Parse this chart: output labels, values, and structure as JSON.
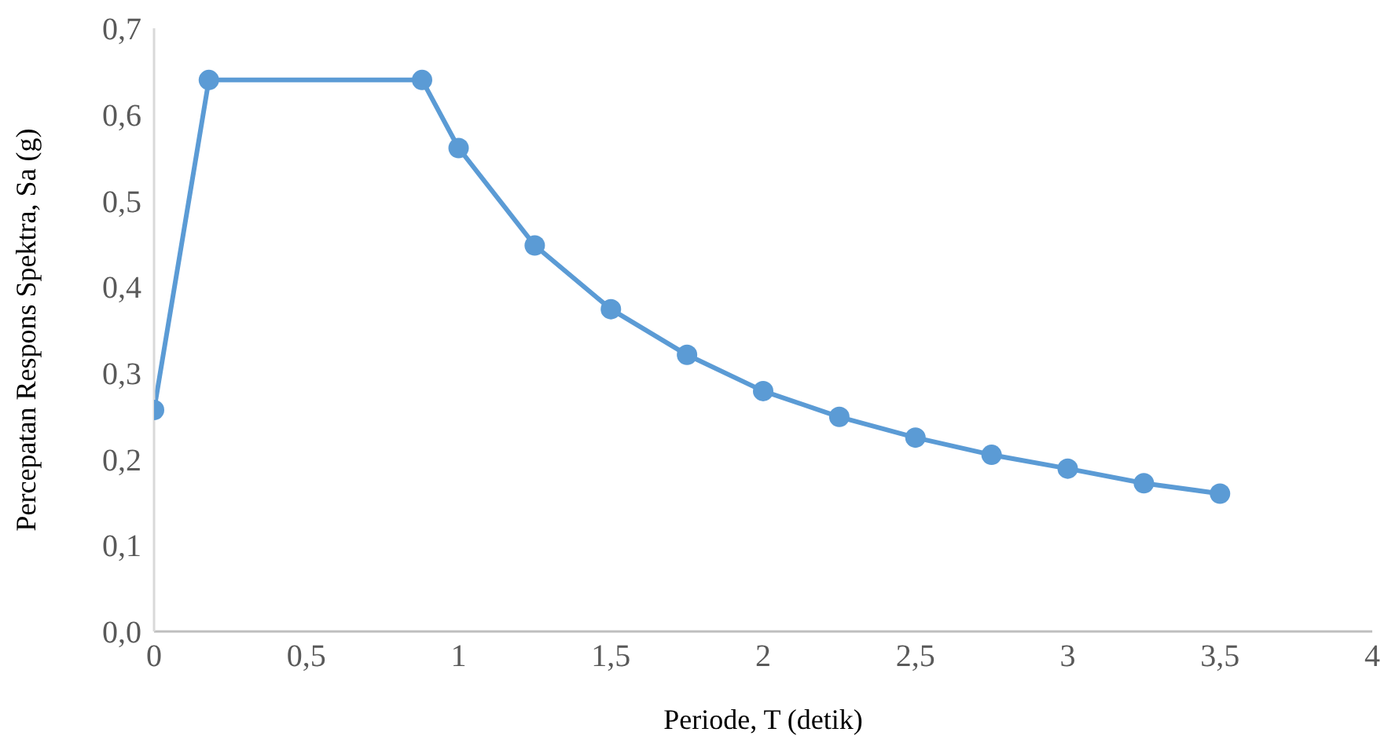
{
  "chart_data": {
    "type": "line",
    "xlabel": "Periode, T (detik)",
    "ylabel": "Percepatan Respons Spektra, Sa (g)",
    "series": [
      {
        "color": "#5b9bd5",
        "x": [
          0,
          0.18,
          0.88,
          1,
          1.25,
          1.5,
          1.75,
          2,
          2.25,
          2.5,
          2.75,
          3,
          3.25,
          3.5
        ],
        "values": [
          0.257,
          0.64,
          0.64,
          0.561,
          0.448,
          0.374,
          0.321,
          0.279,
          0.249,
          0.225,
          0.205,
          0.189,
          0.172,
          0.16
        ]
      }
    ],
    "xlim": [
      0,
      4
    ],
    "xticks": [
      {
        "value": 0,
        "label": "0"
      },
      {
        "value": 0.5,
        "label": "0,5"
      },
      {
        "value": 1,
        "label": "1"
      },
      {
        "value": 1.5,
        "label": "1,5"
      },
      {
        "value": 2,
        "label": "2"
      },
      {
        "value": 2.5,
        "label": "2,5"
      },
      {
        "value": 3,
        "label": "3"
      },
      {
        "value": 3.5,
        "label": "3,5"
      },
      {
        "value": 4,
        "label": "4"
      }
    ],
    "ylim": [
      0,
      0.7
    ],
    "yticks": [
      {
        "value": 0,
        "label": "0,0"
      },
      {
        "value": 0.1,
        "label": "0,1"
      },
      {
        "value": 0.2,
        "label": "0,2"
      },
      {
        "value": 0.3,
        "label": "0,3"
      },
      {
        "value": 0.4,
        "label": "0,4"
      },
      {
        "value": 0.5,
        "label": "0,5"
      },
      {
        "value": 0.6,
        "label": "0,6"
      },
      {
        "value": 0.7,
        "label": "0,7"
      }
    ],
    "grid": false,
    "legend": false,
    "marker": "circle",
    "line_style": "solid"
  }
}
